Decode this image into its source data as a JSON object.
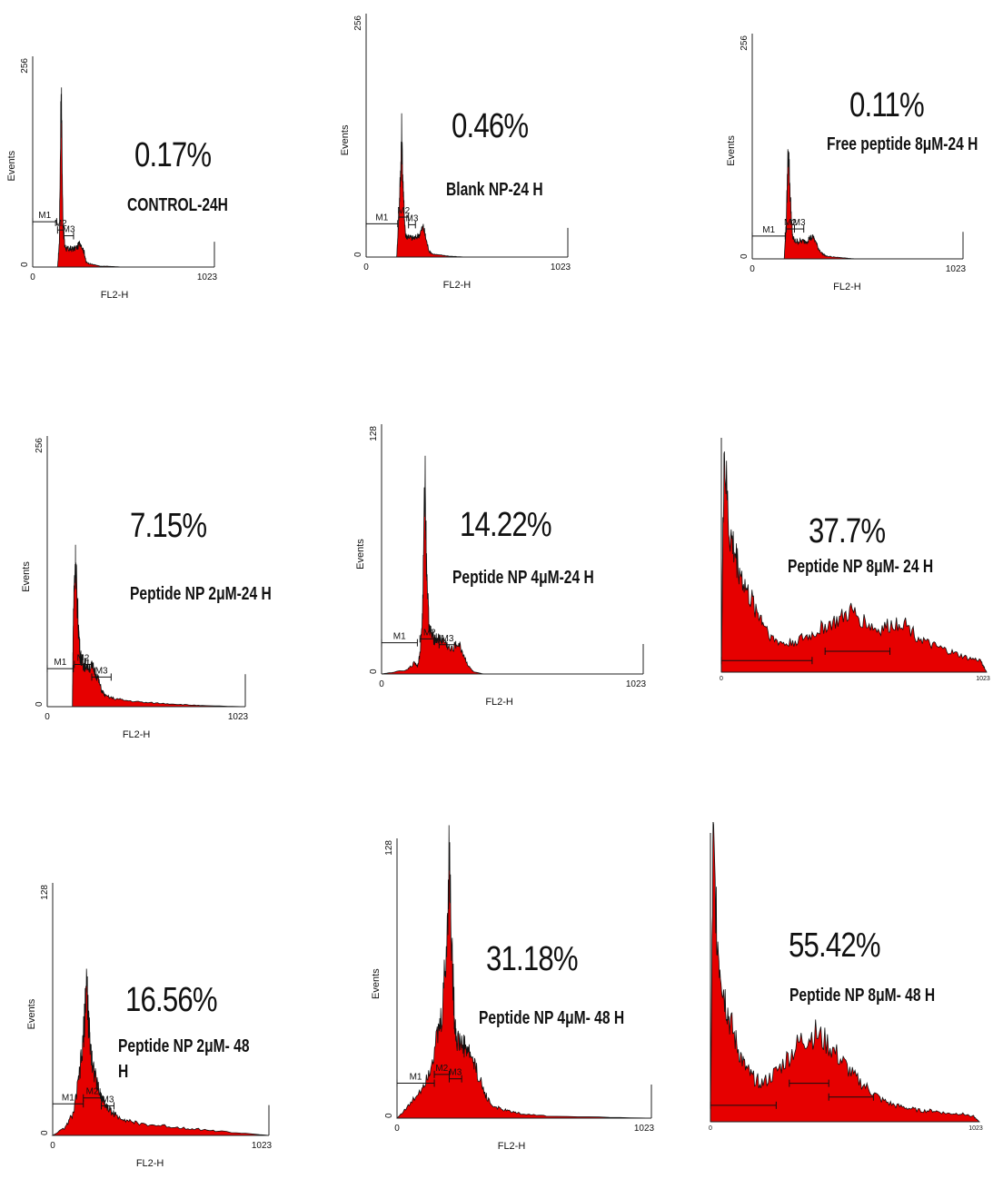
{
  "figure": {
    "colors": {
      "fill": "#e60000",
      "outline": "#111111",
      "axis": "#222222",
      "text": "#111111"
    }
  },
  "chart_data": [
    {
      "type": "area",
      "percentage": "0.17%",
      "label": "CONTROL-24H",
      "xlabel": "FL2-H",
      "ylabel": "Events",
      "xlim": [
        0,
        1023
      ],
      "ylim": [
        0,
        256
      ],
      "x_tick_labels": [
        "0",
        "1023"
      ],
      "y_tick_labels": [
        "0",
        "256"
      ],
      "markers": [
        "M1",
        "M2",
        "M3"
      ],
      "x": [
        0,
        140,
        150,
        160,
        170,
        180,
        190,
        200,
        215,
        230,
        250,
        270,
        290,
        300,
        320,
        340,
        360,
        380,
        420,
        500,
        600,
        1023
      ],
      "y": [
        0,
        0,
        30,
        226,
        60,
        26,
        22,
        22,
        22,
        22,
        24,
        30,
        18,
        6,
        4,
        3,
        2,
        1,
        1,
        0,
        0,
        0
      ],
      "marker_spans": [
        [
          0,
          135,
          55
        ],
        [
          140,
          175,
          45
        ],
        [
          175,
          230,
          38
        ]
      ]
    },
    {
      "type": "area",
      "percentage": "0.46%",
      "label": "Blank NP-24 H",
      "xlabel": "FL2-H",
      "ylabel": "Events",
      "xlim": [
        0,
        1023
      ],
      "ylim": [
        0,
        256
      ],
      "x_tick_labels": [
        "0",
        "1023"
      ],
      "y_tick_labels": [
        "0",
        "256"
      ],
      "markers": [
        "M1",
        "M2",
        "M3"
      ],
      "x": [
        0,
        155,
        165,
        175,
        180,
        190,
        200,
        215,
        230,
        250,
        270,
        290,
        305,
        320,
        340,
        380,
        420,
        500,
        1023
      ],
      "y": [
        0,
        0,
        40,
        90,
        130,
        60,
        22,
        22,
        20,
        20,
        24,
        32,
        18,
        6,
        3,
        2,
        1,
        0,
        0
      ],
      "marker_spans": [
        [
          0,
          160,
          35
        ],
        [
          165,
          215,
          42
        ],
        [
          215,
          250,
          34
        ]
      ]
    },
    {
      "type": "area",
      "percentage": "0.11%",
      "label": "Free peptide 8μM-24 H",
      "xlabel": "FL2-H",
      "ylabel": "Events",
      "xlim": [
        0,
        1023
      ],
      "ylim": [
        0,
        256
      ],
      "x_tick_labels": [
        "0",
        "1023"
      ],
      "y_tick_labels": [
        "0",
        "256"
      ],
      "markers": [
        "M1",
        "M2",
        "M3"
      ],
      "x": [
        0,
        155,
        165,
        175,
        185,
        195,
        205,
        220,
        240,
        260,
        280,
        300,
        320,
        340,
        360,
        400,
        450,
        500,
        1023
      ],
      "y": [
        0,
        0,
        40,
        130,
        70,
        26,
        20,
        20,
        20,
        20,
        24,
        24,
        12,
        6,
        3,
        2,
        1,
        0,
        0
      ],
      "marker_spans": [
        [
          0,
          160,
          26
        ],
        [
          165,
          205,
          34
        ],
        [
          205,
          250,
          34
        ]
      ]
    },
    {
      "type": "area",
      "percentage": "7.15%",
      "label": "Peptide NP 2μM-24 H",
      "xlabel": "FL2-H",
      "ylabel": "Events",
      "xlim": [
        0,
        1023
      ],
      "ylim": [
        0,
        256
      ],
      "x_tick_labels": [
        "0",
        "1023"
      ],
      "y_tick_labels": [
        "0",
        "256"
      ],
      "markers": [
        "M1",
        "M2",
        "M3"
      ],
      "x": [
        0,
        130,
        135,
        145,
        150,
        160,
        170,
        180,
        190,
        200,
        220,
        240,
        260,
        280,
        300,
        340,
        400,
        500,
        600,
        700,
        800,
        1023
      ],
      "y": [
        0,
        0,
        90,
        140,
        120,
        80,
        50,
        42,
        40,
        40,
        38,
        36,
        28,
        16,
        10,
        8,
        6,
        4,
        3,
        2,
        1,
        0
      ],
      "marker_spans": [
        [
          0,
          135,
          36
        ],
        [
          140,
          230,
          40
        ],
        [
          230,
          330,
          28
        ]
      ]
    },
    {
      "type": "area",
      "percentage": "14.22%",
      "label": "Peptide NP 4μM-24 H",
      "xlabel": "FL2-H",
      "ylabel": "Events",
      "xlim": [
        0,
        1023
      ],
      "ylim": [
        0,
        128
      ],
      "x_tick_labels": [
        "0",
        "1023"
      ],
      "y_tick_labels": [
        "0",
        "128"
      ],
      "markers": [
        "M1",
        "M2",
        "M3"
      ],
      "x": [
        0,
        100,
        130,
        140,
        150,
        160,
        170,
        175,
        185,
        195,
        205,
        215,
        230,
        250,
        270,
        300,
        320,
        340,
        360,
        400,
        1023
      ],
      "y": [
        0,
        2,
        6,
        4,
        10,
        30,
        105,
        60,
        26,
        20,
        18,
        18,
        18,
        16,
        12,
        16,
        10,
        4,
        1,
        0,
        0
      ],
      "marker_spans": [
        [
          0,
          140,
          16
        ],
        [
          150,
          225,
          18
        ],
        [
          225,
          290,
          15
        ]
      ]
    },
    {
      "type": "area",
      "percentage": "37.7%",
      "label": "Peptide NP 8μM- 24 H",
      "xlim": [
        0,
        1023
      ],
      "x_tick_labels": [
        "0",
        "1023"
      ],
      "x": [
        0,
        10,
        30,
        50,
        70,
        100,
        130,
        160,
        200,
        250,
        300,
        350,
        400,
        450,
        500,
        550,
        600,
        650,
        700,
        750,
        800,
        850,
        900,
        950,
        1000,
        1023
      ],
      "y": [
        0,
        96,
        60,
        52,
        44,
        34,
        28,
        22,
        14,
        12,
        14,
        16,
        20,
        22,
        26,
        22,
        18,
        20,
        22,
        16,
        12,
        10,
        8,
        6,
        5,
        0
      ],
      "marker_spans": [
        [
          0,
          350,
          5
        ],
        [
          400,
          650,
          9
        ]
      ]
    },
    {
      "type": "area",
      "percentage": "16.56%",
      "label": "Peptide NP 2μM- 48 H",
      "xlabel": "FL2-H",
      "ylabel": "Events",
      "xlim": [
        0,
        1023
      ],
      "ylim": [
        0,
        128
      ],
      "x_tick_labels": [
        "0",
        "1023"
      ],
      "y_tick_labels": [
        "0",
        "128"
      ],
      "markers": [
        "M1",
        "M2",
        "M3"
      ],
      "x": [
        0,
        60,
        100,
        120,
        140,
        150,
        160,
        170,
        180,
        190,
        200,
        220,
        240,
        260,
        280,
        300,
        350,
        400,
        500,
        600,
        700,
        800,
        1023
      ],
      "y": [
        0,
        4,
        12,
        26,
        42,
        58,
        80,
        56,
        44,
        36,
        30,
        22,
        18,
        14,
        12,
        10,
        8,
        6,
        5,
        4,
        3,
        2,
        0
      ],
      "marker_spans": [
        [
          0,
          145,
          16
        ],
        [
          145,
          230,
          19
        ],
        [
          230,
          290,
          15
        ]
      ]
    },
    {
      "type": "area",
      "percentage": "31.18%",
      "label": "Peptide NP 4μM- 48 H",
      "xlabel": "FL2-H",
      "ylabel": "Events",
      "xlim": [
        0,
        1023
      ],
      "ylim": [
        0,
        128
      ],
      "x_tick_labels": [
        "0",
        "1023"
      ],
      "y_tick_labels": [
        "0",
        "128"
      ],
      "markers": [
        "M1",
        "M2",
        "M3"
      ],
      "x": [
        0,
        50,
        100,
        130,
        160,
        180,
        200,
        210,
        220,
        230,
        240,
        260,
        280,
        300,
        320,
        350,
        380,
        420,
        460,
        500,
        600,
        1023
      ],
      "y": [
        0,
        6,
        14,
        22,
        36,
        46,
        80,
        122,
        80,
        48,
        36,
        34,
        32,
        28,
        22,
        12,
        6,
        4,
        3,
        2,
        1,
        0
      ],
      "marker_spans": [
        [
          0,
          150,
          16
        ],
        [
          150,
          210,
          20
        ],
        [
          210,
          260,
          18
        ]
      ]
    },
    {
      "type": "area",
      "percentage": "55.42%",
      "label": "Peptide NP 8μM- 48 H",
      "xlim": [
        0,
        1023
      ],
      "x_tick_labels": [
        "0",
        "1023"
      ],
      "x": [
        0,
        10,
        30,
        50,
        70,
        100,
        130,
        160,
        200,
        250,
        300,
        350,
        400,
        450,
        500,
        550,
        600,
        650,
        700,
        750,
        800,
        850,
        900,
        950,
        1000,
        1023
      ],
      "y": [
        0,
        100,
        62,
        48,
        38,
        28,
        20,
        16,
        14,
        18,
        24,
        30,
        32,
        28,
        22,
        16,
        12,
        8,
        6,
        5,
        4,
        4,
        3,
        3,
        2,
        0
      ],
      "marker_spans": [
        [
          0,
          250,
          6
        ],
        [
          300,
          450,
          14
        ],
        [
          450,
          620,
          9
        ]
      ]
    }
  ]
}
